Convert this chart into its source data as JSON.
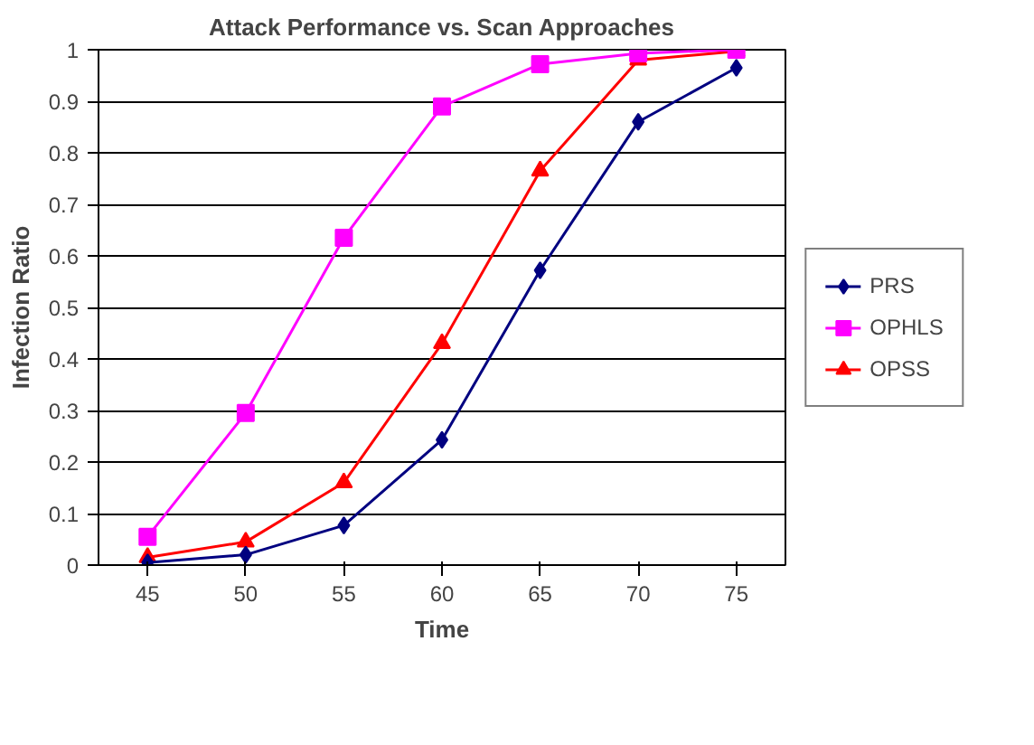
{
  "chart_data": {
    "type": "line",
    "title": "Attack Performance vs. Scan Approaches",
    "xlabel": "Time",
    "ylabel": "Infection Ratio",
    "categories": [
      "45",
      "50",
      "55",
      "60",
      "65",
      "70",
      "75"
    ],
    "ylim": [
      0,
      1
    ],
    "yticks": [
      0,
      0.1,
      0.2,
      0.3,
      0.4,
      0.5,
      0.6,
      0.7,
      0.8,
      0.9,
      1
    ],
    "grid": "y",
    "legend": "right",
    "series": [
      {
        "name": "PRS",
        "color": "#000080",
        "marker": "diamond",
        "values": [
          0.005,
          0.02,
          0.077,
          0.243,
          0.572,
          0.86,
          0.965
        ]
      },
      {
        "name": "OPHLS",
        "color": "#ff00ff",
        "marker": "square",
        "values": [
          0.055,
          0.295,
          0.635,
          0.89,
          0.972,
          0.993,
          1.0
        ]
      },
      {
        "name": "OPSS",
        "color": "#ff0000",
        "marker": "triangle",
        "values": [
          0.015,
          0.045,
          0.16,
          0.43,
          0.765,
          0.98,
          0.997
        ]
      }
    ]
  }
}
